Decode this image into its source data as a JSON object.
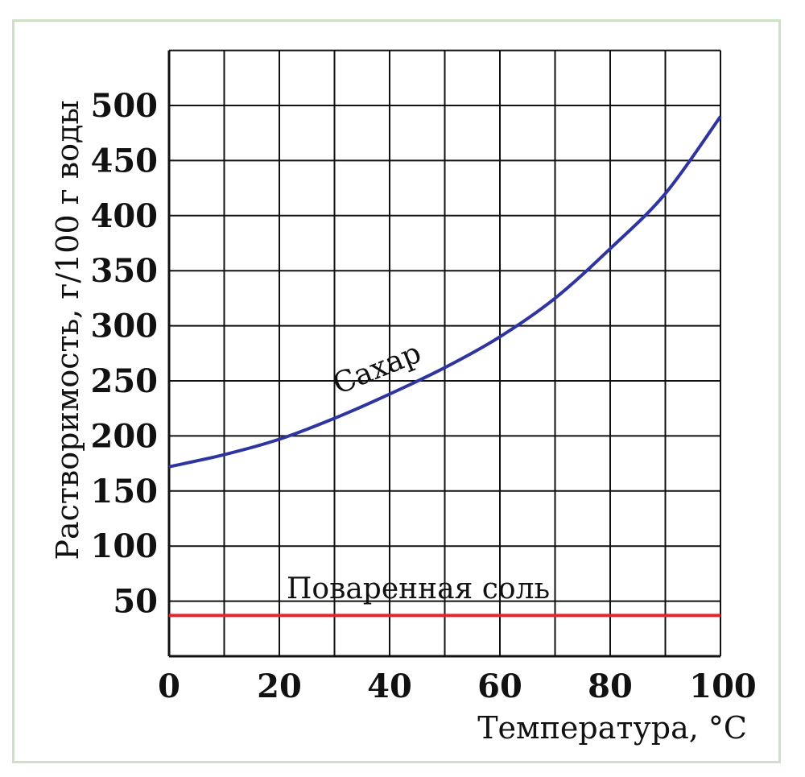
{
  "chart_data": {
    "type": "line",
    "title": "",
    "xlabel": "Температура, °C",
    "ylabel": "Растворимость, г/100 г воды",
    "xlim": [
      0,
      100
    ],
    "ylim": [
      0,
      550
    ],
    "x_ticks": [
      "0",
      "20",
      "40",
      "60",
      "80",
      "100"
    ],
    "y_ticks": [
      "50",
      "100",
      "150",
      "200",
      "250",
      "300",
      "350",
      "400",
      "450",
      "500"
    ],
    "grid": true,
    "grid_x_step": 10,
    "grid_y_step": 50,
    "x": [
      0,
      10,
      20,
      30,
      40,
      50,
      60,
      70,
      80,
      90,
      100
    ],
    "series": [
      {
        "name": "Сахар",
        "color": "#2e35a0",
        "values": [
          172,
          183,
          197,
          216,
          238,
          262,
          290,
          325,
          370,
          420,
          490
        ]
      },
      {
        "name": "Поваренная соль",
        "color": "#e8232b",
        "values": [
          37,
          37,
          37,
          37,
          37,
          37,
          37,
          37,
          37,
          37,
          37
        ]
      }
    ],
    "annotations": [
      {
        "text": "Сахар",
        "near_x": 35,
        "near_y": 260
      },
      {
        "text": "Поваренная соль",
        "near_x": 40,
        "near_y": 55
      }
    ]
  },
  "frame_border_color": "#cfe0c8"
}
